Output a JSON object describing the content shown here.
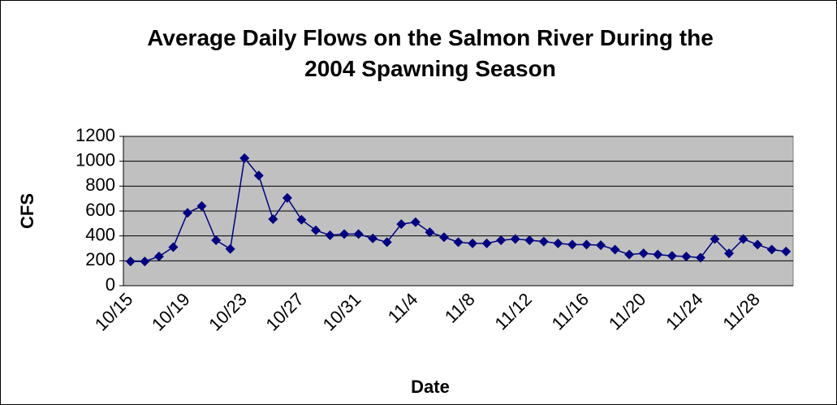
{
  "chart_data": {
    "type": "line",
    "title": "Average Daily Flows on the Salmon River During the 2004 Spawning Season",
    "x_label": "Date",
    "y_label": "CFS",
    "categories": [
      "10/15",
      null,
      null,
      null,
      "10/19",
      null,
      null,
      null,
      "10/23",
      null,
      null,
      null,
      "10/27",
      null,
      null,
      null,
      "10/31",
      null,
      null,
      null,
      "11/4",
      null,
      null,
      null,
      "11/8",
      null,
      null,
      null,
      "11/12",
      null,
      null,
      null,
      "11/16",
      null,
      null,
      null,
      "11/20",
      null,
      null,
      null,
      "11/24",
      null,
      null,
      null,
      "11/28",
      null,
      null
    ],
    "values": [
      195,
      195,
      235,
      310,
      585,
      640,
      365,
      295,
      1025,
      885,
      535,
      705,
      530,
      445,
      405,
      415,
      415,
      380,
      350,
      495,
      510,
      430,
      390,
      350,
      340,
      340,
      365,
      375,
      365,
      355,
      340,
      330,
      330,
      325,
      290,
      250,
      260,
      250,
      240,
      235,
      225,
      375,
      260,
      375,
      330,
      290,
      275
    ],
    "color": "#000080",
    "ylim": [
      0,
      1200
    ],
    "yticks": [
      0,
      200,
      400,
      600,
      800,
      1000,
      1200
    ],
    "grid": true
  }
}
